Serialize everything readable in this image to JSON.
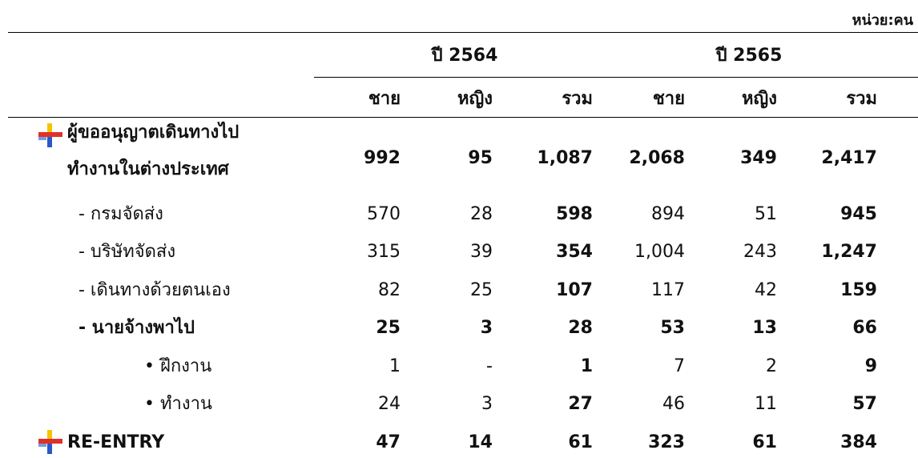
{
  "unit": "หน่วย:คน",
  "table": {
    "years": [
      "ปี 2564",
      "ปี 2565"
    ],
    "columns": [
      "ชาย",
      "หญิง",
      "รวม",
      "ชาย",
      "หญิง",
      "รวม"
    ],
    "rows": [
      {
        "label_lines": [
          "ผู้ขออนุญาตเดินทางไป",
          "ทำงานในต่างประเทศ"
        ],
        "icon": true,
        "bold": true,
        "level": 0,
        "cells": [
          "992",
          "95",
          "1,087",
          "2,068",
          "349",
          "2,417"
        ]
      },
      {
        "label_lines": [
          "- กรมจัดส่ง"
        ],
        "icon": false,
        "bold": false,
        "level": 1,
        "cells": [
          "570",
          "28",
          "598",
          "894",
          "51",
          "945"
        ]
      },
      {
        "label_lines": [
          "- บริษัทจัดส่ง"
        ],
        "icon": false,
        "bold": false,
        "level": 1,
        "cells": [
          "315",
          "39",
          "354",
          "1,004",
          "243",
          "1,247"
        ]
      },
      {
        "label_lines": [
          "- เดินทางด้วยตนเอง"
        ],
        "icon": false,
        "bold": false,
        "level": 1,
        "cells": [
          "82",
          "25",
          "107",
          "117",
          "42",
          "159"
        ]
      },
      {
        "label_lines": [
          "- นายจ้างพาไป"
        ],
        "icon": false,
        "bold": true,
        "level": 1,
        "cells": [
          "25",
          "3",
          "28",
          "53",
          "13",
          "66"
        ]
      },
      {
        "label_lines": [
          "• ฝึกงาน"
        ],
        "icon": false,
        "bold": false,
        "level": 2,
        "cells": [
          "1",
          "-",
          "1",
          "7",
          "2",
          "9"
        ]
      },
      {
        "label_lines": [
          "• ทำงาน"
        ],
        "icon": false,
        "bold": false,
        "level": 2,
        "cells": [
          "24",
          "3",
          "27",
          "46",
          "11",
          "57"
        ]
      },
      {
        "label_lines": [
          "RE-ENTRY"
        ],
        "icon": true,
        "bold": true,
        "level": 0,
        "cells": [
          "47",
          "14",
          "61",
          "323",
          "61",
          "384"
        ]
      }
    ]
  }
}
